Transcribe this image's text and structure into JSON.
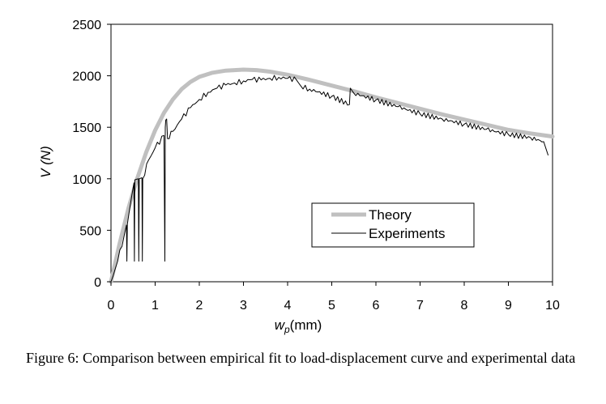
{
  "caption": "Figure 6: Comparison between empirical fit to load-displacement curve and experimental data",
  "chart_data": {
    "type": "line",
    "title": "",
    "xlabel_base": "w",
    "xlabel_sub": "p",
    "xlabel_unit": "(mm)",
    "ylabel": "V (N)",
    "xlim": [
      0,
      10
    ],
    "ylim": [
      0,
      2500
    ],
    "xticks": [
      0,
      1,
      2,
      3,
      4,
      5,
      6,
      7,
      8,
      9,
      10
    ],
    "yticks": [
      0,
      500,
      1000,
      1500,
      2000,
      2500
    ],
    "grid": false,
    "legend_position": "lower-right",
    "series": [
      {
        "name": "Theory",
        "color": "#c0c0c0",
        "style": "thick",
        "x": [
          0,
          0.2,
          0.4,
          0.6,
          0.8,
          1.0,
          1.2,
          1.4,
          1.6,
          1.8,
          2.0,
          2.3,
          2.6,
          3.0,
          3.3,
          3.6,
          4.0,
          4.5,
          5.0,
          5.5,
          6.0,
          6.5,
          7.0,
          7.5,
          8.0,
          8.5,
          9.0,
          9.5,
          10.0
        ],
        "y": [
          0,
          380,
          720,
          1010,
          1260,
          1470,
          1640,
          1770,
          1870,
          1940,
          1990,
          2030,
          2050,
          2060,
          2055,
          2040,
          2010,
          1960,
          1905,
          1850,
          1790,
          1735,
          1680,
          1625,
          1575,
          1525,
          1475,
          1440,
          1410
        ]
      },
      {
        "name": "Experiments",
        "color": "#000000",
        "style": "thin",
        "x": [
          0,
          0.05,
          0.15,
          0.3,
          0.35,
          0.36,
          0.37,
          0.45,
          0.52,
          0.53,
          0.54,
          0.62,
          0.63,
          0.64,
          0.7,
          0.71,
          0.72,
          0.85,
          1.0,
          1.2,
          1.22,
          1.23,
          1.24,
          1.26,
          1.28,
          1.4,
          1.6,
          1.8,
          2.0,
          2.2,
          2.4,
          2.6,
          2.8,
          3.0,
          3.2,
          3.4,
          3.6,
          3.8,
          4.0,
          4.2,
          4.3,
          4.5,
          5.0,
          5.4,
          5.42,
          5.5,
          6.0,
          6.5,
          7.0,
          7.5,
          8.0,
          8.5,
          9.0,
          9.5,
          9.8,
          9.9
        ],
        "y": [
          0,
          60,
          200,
          450,
          550,
          200,
          560,
          780,
          960,
          200,
          990,
          1000,
          200,
          1000,
          1010,
          200,
          1000,
          1180,
          1300,
          1420,
          200,
          1500,
          1570,
          1580,
          1390,
          1460,
          1580,
          1690,
          1770,
          1840,
          1880,
          1910,
          1930,
          1950,
          1965,
          1960,
          1975,
          1985,
          1975,
          1960,
          1900,
          1870,
          1800,
          1720,
          1880,
          1830,
          1765,
          1700,
          1630,
          1580,
          1530,
          1480,
          1430,
          1400,
          1360,
          1230
        ]
      }
    ]
  }
}
